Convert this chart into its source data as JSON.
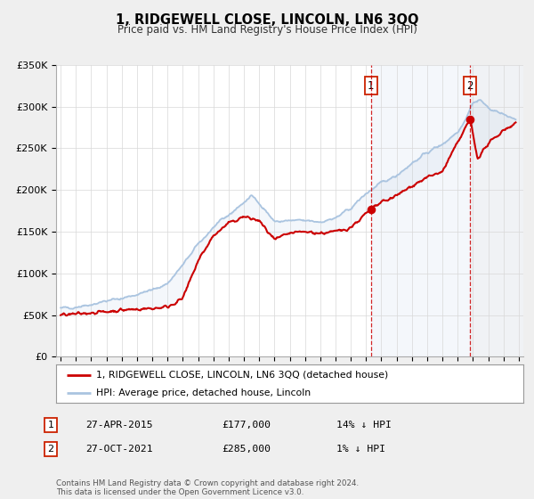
{
  "title": "1, RIDGEWELL CLOSE, LINCOLN, LN6 3QQ",
  "subtitle": "Price paid vs. HM Land Registry's House Price Index (HPI)",
  "red_label": "1, RIDGEWELL CLOSE, LINCOLN, LN6 3QQ (detached house)",
  "blue_label": "HPI: Average price, detached house, Lincoln",
  "sale1_date": "27-APR-2015",
  "sale1_price": 177000,
  "sale1_hpi": "14% ↓ HPI",
  "sale2_date": "27-OCT-2021",
  "sale2_price": 285000,
  "sale2_hpi": "1% ↓ HPI",
  "footer": "Contains HM Land Registry data © Crown copyright and database right 2024.\nThis data is licensed under the Open Government Licence v3.0.",
  "ylim": [
    0,
    350000
  ],
  "yticks": [
    0,
    50000,
    100000,
    150000,
    200000,
    250000,
    300000,
    350000
  ],
  "xlim_start": 1994.7,
  "xlim_end": 2025.3,
  "sale1_x": 2015.32,
  "sale2_x": 2021.82,
  "hpi_color": "#aac4e0",
  "price_color": "#cc0000",
  "background_color": "#efefef",
  "plot_bg_color": "#ffffff",
  "anno_box_color": "#d0d8e8"
}
